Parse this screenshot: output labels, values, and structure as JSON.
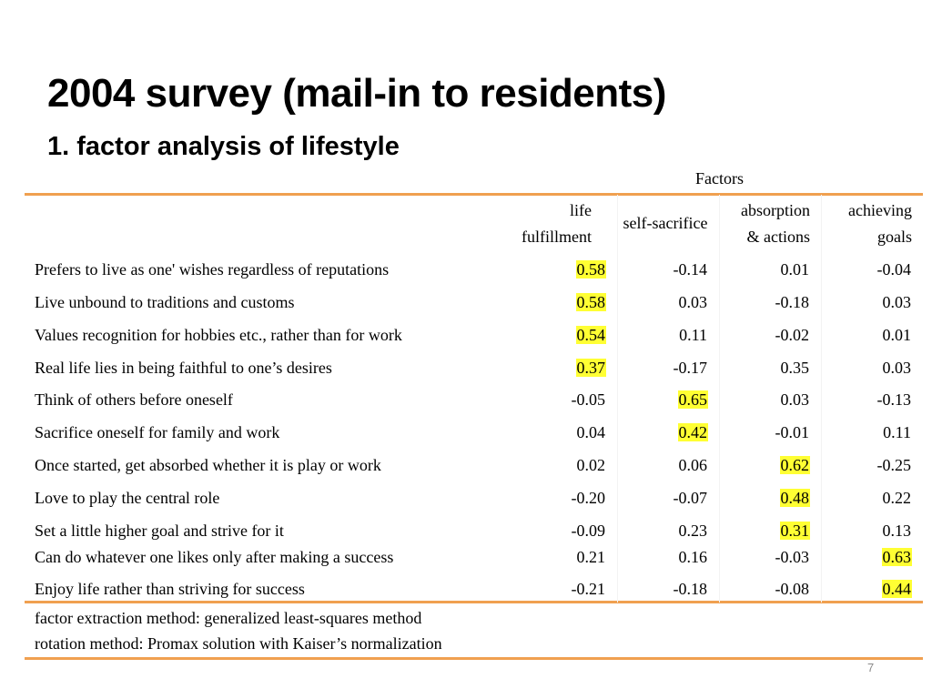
{
  "slide": {
    "title": "2004 survey (mail-in to residents)",
    "subtitle": "1. factor analysis of lifestyle",
    "page_number": "7"
  },
  "table": {
    "group_header": "Factors",
    "columns": [
      {
        "line1": "life",
        "line2": "fulfillment"
      },
      {
        "line1": "self-sacrifice",
        "line2": ""
      },
      {
        "line1": "absorption",
        "line2": "& actions"
      },
      {
        "line1": "achieving",
        "line2": "goals"
      }
    ],
    "rows": [
      {
        "label": "Prefers to live as one' wishes regardless of reputations",
        "values": [
          "0.58",
          "-0.14",
          "0.01",
          "-0.04"
        ],
        "highlight": 0
      },
      {
        "label": "Live unbound to traditions and customs",
        "values": [
          "0.58",
          "0.03",
          "-0.18",
          "0.03"
        ],
        "highlight": 0
      },
      {
        "label": "Values recognition for hobbies etc., rather than for work",
        "values": [
          "0.54",
          "0.11",
          "-0.02",
          "0.01"
        ],
        "highlight": 0
      },
      {
        "label": "Real life lies in being faithful to one’s desires",
        "values": [
          "0.37",
          "-0.17",
          "0.35",
          "0.03"
        ],
        "highlight": 0
      },
      {
        "label": "Think of others before oneself",
        "values": [
          "-0.05",
          "0.65",
          "0.03",
          "-0.13"
        ],
        "highlight": 1
      },
      {
        "label": "Sacrifice oneself for family and work",
        "values": [
          "0.04",
          "0.42",
          "-0.01",
          "0.11"
        ],
        "highlight": 1
      },
      {
        "label": "Once started, get absorbed whether it is play or work",
        "values": [
          "0.02",
          "0.06",
          "0.62",
          "-0.25"
        ],
        "highlight": 2
      },
      {
        "label": "Love to play the central role",
        "values": [
          "-0.20",
          "-0.07",
          "0.48",
          "0.22"
        ],
        "highlight": 2
      },
      {
        "label": "Set a little higher goal and strive for it",
        "values": [
          "-0.09",
          "0.23",
          "0.31",
          "0.13"
        ],
        "highlight": 2
      },
      {
        "label": "Can do whatever one likes only after making a success",
        "values": [
          "0.21",
          "0.16",
          "-0.03",
          "0.63"
        ],
        "highlight": 3
      },
      {
        "label": "Enjoy life rather than striving for success",
        "values": [
          "-0.21",
          "-0.18",
          "-0.08",
          "0.44"
        ],
        "highlight": 3
      }
    ],
    "notes": [
      "factor extraction method: generalized least-squares method",
      "rotation method: Promax solution with Kaiser’s normalization"
    ]
  },
  "colors": {
    "rule": "#f0a050",
    "highlight": "#ffff33",
    "page_number": "#8a8a8a"
  }
}
